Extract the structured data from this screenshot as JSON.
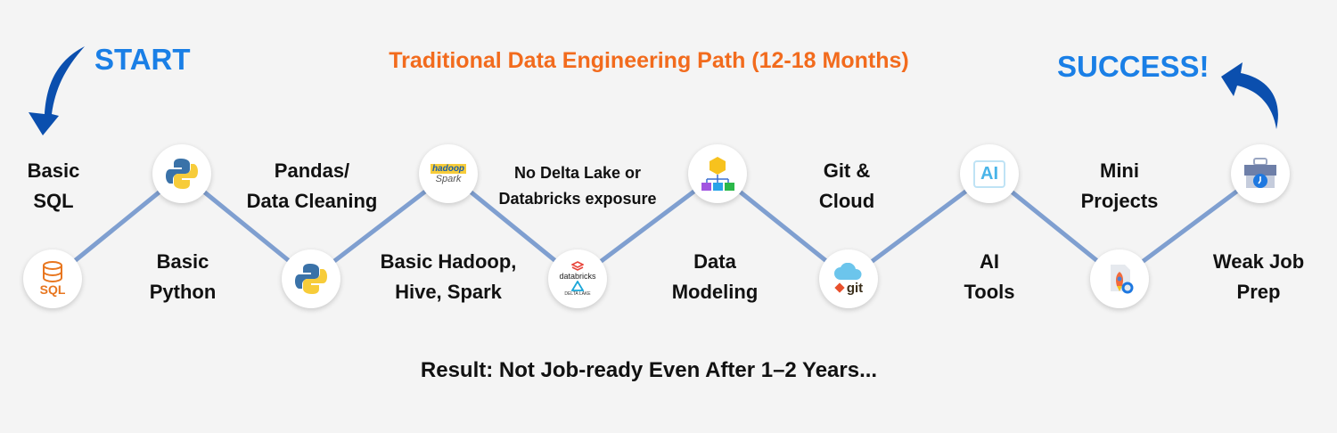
{
  "title": "Traditional Data Engineering Path (12-18 Months)",
  "start_label": "START",
  "success_label": "SUCCESS!",
  "result": "Result: Not Job-ready Even After 1–2 Years...",
  "colors": {
    "title": "#f26b1d",
    "accent_blue": "#1a7fe6",
    "arrow": "#0b4fae",
    "path_line": "#7f9fd0",
    "background": "#f4f4f4"
  },
  "steps": [
    {
      "label_1": "Basic",
      "label_2": "SQL",
      "icon": "sql-database-icon",
      "icon_text": "SQL"
    },
    {
      "label_1": "Basic",
      "label_2": "Python",
      "icon": "python-icon"
    },
    {
      "label_1": "Pandas/",
      "label_2": "Data Cleaning",
      "icon": "python-icon"
    },
    {
      "label_1": "Basic Hadoop,",
      "label_2": "Hive, Spark",
      "icon": "hadoop-spark-hive-icon",
      "icon_text_1": "hadoop",
      "icon_text_2": "Spark"
    },
    {
      "label_1": "No Delta Lake or",
      "label_2": "Databricks exposure",
      "icon": "databricks-delta-lake-icon",
      "icon_text_1": "databricks",
      "icon_text_2": "DELTA LAKE"
    },
    {
      "label_1": "Data",
      "label_2": "Modeling",
      "icon": "data-model-icon"
    },
    {
      "label_1": "Git &",
      "label_2": "Cloud",
      "icon": "git-cloud-icon",
      "icon_text": "git"
    },
    {
      "label_1": "AI",
      "label_2": "Tools",
      "icon": "ai-chip-icon",
      "icon_text": "AI"
    },
    {
      "label_1": "Mini",
      "label_2": "Projects",
      "icon": "rocket-document-icon"
    },
    {
      "label_1": "Weak Job",
      "label_2": "Prep",
      "icon": "briefcase-clock-icon"
    }
  ]
}
